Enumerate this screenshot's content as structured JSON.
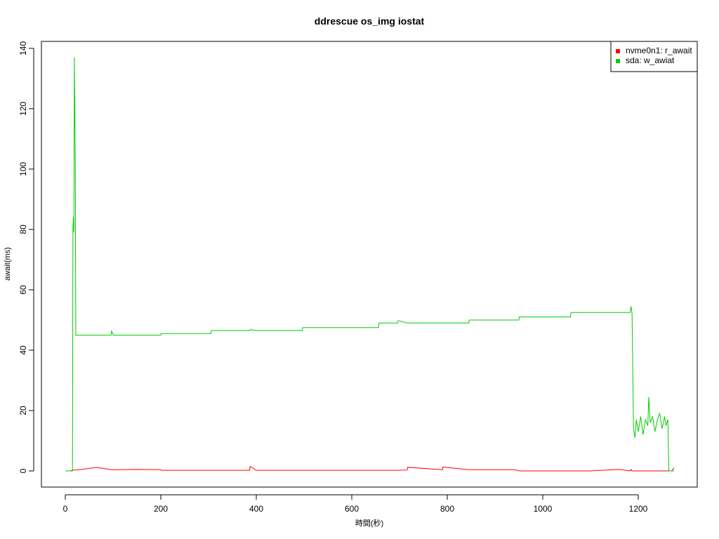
{
  "chart_data": {
    "type": "line",
    "title": "ddrescue os_img iostat",
    "x_label": "時間(秒)",
    "y_label": "await(ms)",
    "x": [
      0,
      10,
      15,
      16,
      17,
      18,
      19,
      21,
      22,
      40,
      65,
      96,
      97,
      100,
      150,
      200,
      201,
      250,
      305,
      306,
      386,
      387,
      400,
      496,
      497,
      600,
      656,
      657,
      696,
      697,
      716,
      717,
      790,
      791,
      845,
      846,
      900,
      940,
      950,
      951,
      1000,
      1058,
      1059,
      1100,
      1160,
      1183,
      1185,
      1187,
      1190,
      1193,
      1196,
      1200,
      1205,
      1210,
      1215,
      1220,
      1222,
      1225,
      1230,
      1235,
      1240,
      1245,
      1250,
      1255,
      1258,
      1262,
      1264,
      1270,
      1275
    ],
    "series": [
      {
        "name": "nvme0n1: r_await",
        "color": "#ff0000",
        "values": [
          0,
          0,
          0.2,
          0.3,
          0.3,
          0.3,
          0.3,
          0.3,
          0.3,
          0.6,
          1.2,
          0.4,
          0.4,
          0.4,
          0.5,
          0.4,
          0.2,
          0.2,
          0.2,
          0.2,
          0.2,
          1.5,
          0.2,
          0.2,
          0.2,
          0.2,
          0.2,
          0.2,
          0.2,
          0.2,
          0.3,
          1.2,
          0.4,
          1.3,
          0.4,
          0.4,
          0.4,
          0.4,
          0.1,
          0,
          0,
          0,
          0,
          0,
          0.5,
          0,
          0.5,
          0,
          0,
          0,
          0,
          0,
          0,
          0,
          0,
          0,
          0,
          0,
          0,
          0,
          0,
          0,
          0,
          0,
          0,
          0,
          0,
          0,
          1
        ]
      },
      {
        "name": "sda: w_awiat",
        "color": "#00cd00",
        "values": [
          0,
          0,
          0,
          80,
          84,
          79,
          137,
          100,
          45,
          45,
          45,
          45,
          46.5,
          45,
          45,
          45,
          45.5,
          45.5,
          45.5,
          46.5,
          46.5,
          46.8,
          46.5,
          46.5,
          47.5,
          47.5,
          47.5,
          49,
          49,
          49.8,
          49,
          49,
          49,
          49,
          49,
          50,
          50,
          50,
          50,
          51,
          51,
          51,
          52.5,
          52.5,
          52.5,
          52.5,
          54.5,
          52,
          14,
          11,
          17,
          13,
          18,
          12,
          17,
          15,
          24.5,
          16,
          18,
          13,
          17,
          19,
          14,
          18,
          15,
          17,
          0,
          0,
          0
        ]
      }
    ],
    "xlim": [
      -50,
      1323.5
    ],
    "ylim": [
      -5.35,
      142.3
    ],
    "xticks": [
      0,
      200,
      400,
      600,
      800,
      1000,
      1200
    ],
    "yticks": [
      0,
      20,
      40,
      60,
      80,
      100,
      120,
      140
    ],
    "legend": "top-right"
  }
}
